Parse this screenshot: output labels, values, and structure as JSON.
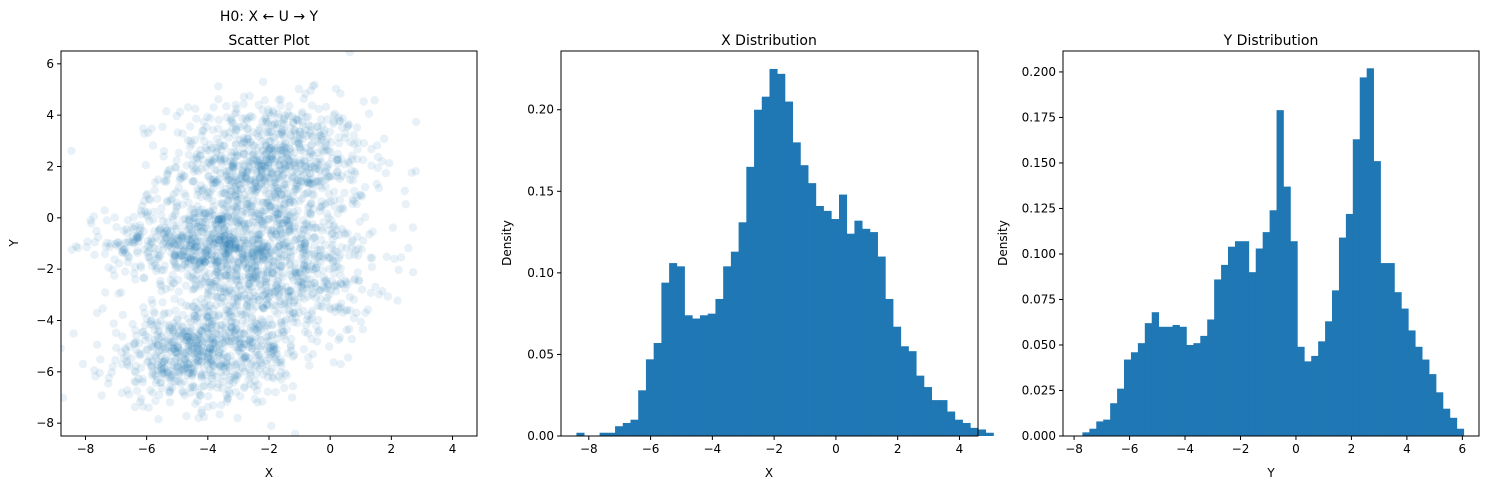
{
  "figure": {
    "colors": {
      "accent": "#1f77b4",
      "axis": "#000000",
      "background": "#ffffff"
    }
  },
  "chart_data": [
    {
      "type": "scatter",
      "title": "H0: X ← U → Y\nScatter Plot",
      "xlabel": "X",
      "ylabel": "Y",
      "xlim": [
        -8.8,
        4.8
      ],
      "ylim": [
        -8.5,
        6.5
      ],
      "xticks": [
        -8,
        -6,
        -4,
        -2,
        0,
        2,
        4
      ],
      "yticks": [
        -8,
        -6,
        -4,
        -2,
        0,
        2,
        4,
        6
      ],
      "marker_alpha": 0.1,
      "grid": false,
      "clusters": [
        {
          "cx": -2.0,
          "cy": 2.0,
          "sx": 1.6,
          "sy": 1.3,
          "n": 900
        },
        {
          "cx": -4.3,
          "cy": -1.0,
          "sx": 1.5,
          "sy": 0.8,
          "n": 600
        },
        {
          "cx": -1.6,
          "cy": -2.0,
          "sx": 1.5,
          "sy": 1.4,
          "n": 700
        },
        {
          "cx": -4.8,
          "cy": -5.3,
          "sx": 1.3,
          "sy": 1.0,
          "n": 500
        },
        {
          "cx": -2.8,
          "cy": -5.0,
          "sx": 1.0,
          "sy": 1.0,
          "n": 250
        }
      ]
    },
    {
      "type": "bar",
      "title": "X Distribution",
      "xlabel": "X",
      "ylabel": "Density",
      "xlim": [
        -8.9,
        4.6
      ],
      "ylim": [
        0,
        0.236
      ],
      "xticks": [
        -8,
        -6,
        -4,
        -2,
        0,
        2,
        4
      ],
      "yticks": [
        0.0,
        0.05,
        0.1,
        0.15,
        0.2
      ],
      "ytick_format": 2,
      "bin_start": -8.4,
      "bin_width": 0.25,
      "values": [
        0.002,
        0.0,
        0.0,
        0.002,
        0.002,
        0.006,
        0.008,
        0.01,
        0.028,
        0.047,
        0.057,
        0.094,
        0.106,
        0.104,
        0.074,
        0.072,
        0.074,
        0.075,
        0.084,
        0.104,
        0.113,
        0.131,
        0.165,
        0.2,
        0.208,
        0.225,
        0.222,
        0.205,
        0.18,
        0.166,
        0.155,
        0.141,
        0.138,
        0.133,
        0.148,
        0.124,
        0.132,
        0.127,
        0.125,
        0.11,
        0.084,
        0.067,
        0.055,
        0.052,
        0.037,
        0.03,
        0.022,
        0.022,
        0.015,
        0.01,
        0.008,
        0.005,
        0.004,
        0.002
      ]
    },
    {
      "type": "bar",
      "title": "Y Distribution",
      "xlabel": "Y",
      "ylabel": "Density",
      "xlim": [
        -8.4,
        6.6
      ],
      "ylim": [
        0,
        0.2115
      ],
      "xticks": [
        -8,
        -6,
        -4,
        -2,
        0,
        2,
        4,
        6
      ],
      "yticks": [
        0.0,
        0.025,
        0.05,
        0.075,
        0.1,
        0.125,
        0.15,
        0.175,
        0.2
      ],
      "ytick_format": 3,
      "bin_start": -7.7,
      "bin_width": 0.25,
      "values": [
        0.002,
        0.004,
        0.008,
        0.009,
        0.018,
        0.026,
        0.042,
        0.046,
        0.051,
        0.062,
        0.068,
        0.06,
        0.06,
        0.061,
        0.06,
        0.05,
        0.051,
        0.055,
        0.064,
        0.086,
        0.094,
        0.104,
        0.107,
        0.107,
        0.09,
        0.103,
        0.112,
        0.124,
        0.179,
        0.137,
        0.107,
        0.049,
        0.041,
        0.044,
        0.052,
        0.063,
        0.08,
        0.109,
        0.122,
        0.163,
        0.197,
        0.202,
        0.151,
        0.095,
        0.095,
        0.079,
        0.07,
        0.058,
        0.049,
        0.042,
        0.034,
        0.024,
        0.015,
        0.01,
        0.004
      ]
    }
  ]
}
